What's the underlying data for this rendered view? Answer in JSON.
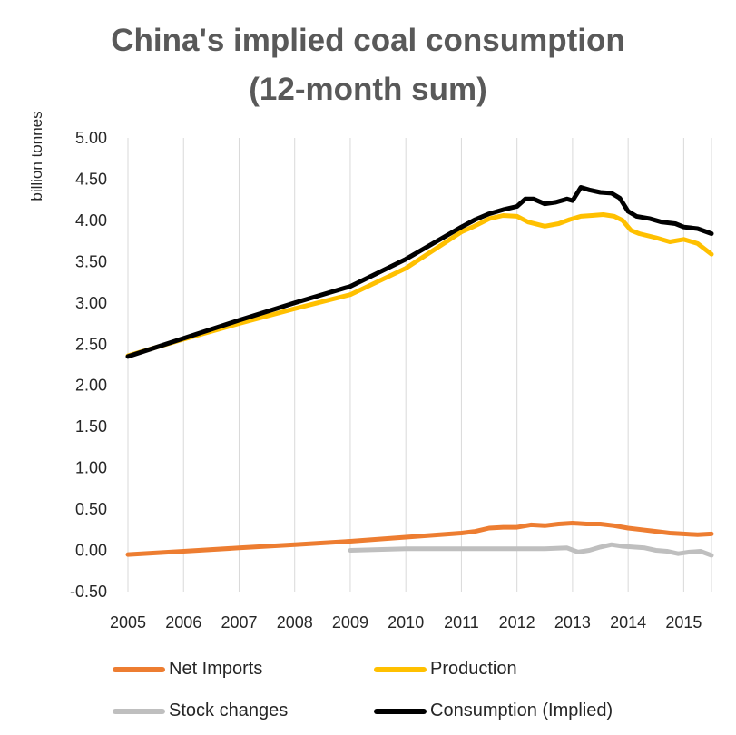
{
  "chart_data": {
    "type": "line",
    "title_line1": "China's implied coal consumption",
    "title_line2": "(12-month sum)",
    "ylabel": "billion tonnes",
    "xlabel": "",
    "ylim": [
      -0.5,
      5.0
    ],
    "xlim": [
      2005,
      2015.5
    ],
    "yticks": [
      "-0.50",
      "0.00",
      "0.50",
      "1.00",
      "1.50",
      "2.00",
      "2.50",
      "3.00",
      "3.50",
      "4.00",
      "4.50",
      "5.00"
    ],
    "xticks": [
      "2005",
      "2006",
      "2007",
      "2008",
      "2009",
      "2010",
      "2011",
      "2012",
      "2013",
      "2014",
      "2015"
    ],
    "grid": "vertical",
    "legend": "bottom",
    "series": [
      {
        "name": "Net Imports",
        "color": "#ed7d31",
        "x": [
          2005,
          2006,
          2007,
          2008,
          2009,
          2010,
          2011,
          2011.25,
          2011.5,
          2011.75,
          2012,
          2012.25,
          2012.5,
          2012.75,
          2013,
          2013.25,
          2013.5,
          2013.75,
          2014,
          2014.25,
          2014.5,
          2014.75,
          2015,
          2015.25,
          2015.5
        ],
        "y": [
          -0.05,
          -0.01,
          0.03,
          0.07,
          0.11,
          0.16,
          0.21,
          0.23,
          0.27,
          0.28,
          0.28,
          0.31,
          0.3,
          0.32,
          0.33,
          0.32,
          0.32,
          0.3,
          0.27,
          0.25,
          0.23,
          0.21,
          0.2,
          0.19,
          0.2
        ]
      },
      {
        "name": "Production",
        "color": "#ffc000",
        "x": [
          2005,
          2006,
          2007,
          2008,
          2009,
          2010,
          2011,
          2011.2,
          2011.5,
          2011.75,
          2012,
          2012.2,
          2012.5,
          2012.75,
          2012.95,
          2013.15,
          2013.35,
          2013.55,
          2013.75,
          2013.9,
          2014.05,
          2014.2,
          2014.5,
          2014.75,
          2015,
          2015.25,
          2015.5
        ],
        "y": [
          2.36,
          2.56,
          2.75,
          2.93,
          3.1,
          3.42,
          3.86,
          3.92,
          4.02,
          4.06,
          4.05,
          3.98,
          3.93,
          3.96,
          4.01,
          4.05,
          4.06,
          4.07,
          4.05,
          4.0,
          3.88,
          3.84,
          3.79,
          3.74,
          3.77,
          3.72,
          3.59
        ]
      },
      {
        "name": "Stock changes",
        "color": "#bfbfbf",
        "x": [
          2009,
          2010,
          2011,
          2012,
          2012.5,
          2012.9,
          2013.1,
          2013.3,
          2013.5,
          2013.7,
          2013.9,
          2014.1,
          2014.3,
          2014.5,
          2014.7,
          2014.9,
          2015.1,
          2015.3,
          2015.5
        ],
        "y": [
          0.0,
          0.02,
          0.02,
          0.02,
          0.02,
          0.03,
          -0.02,
          0.0,
          0.04,
          0.07,
          0.05,
          0.04,
          0.03,
          0.0,
          -0.01,
          -0.04,
          -0.02,
          -0.01,
          -0.06
        ]
      },
      {
        "name": "Consumption (Implied)",
        "color": "#000000",
        "x": [
          2005,
          2006,
          2007,
          2008,
          2009,
          2010,
          2011,
          2011.25,
          2011.5,
          2011.75,
          2012,
          2012.15,
          2012.3,
          2012.5,
          2012.7,
          2012.9,
          2013.0,
          2013.15,
          2013.3,
          2013.5,
          2013.7,
          2013.85,
          2014.0,
          2014.15,
          2014.4,
          2014.6,
          2014.85,
          2015.0,
          2015.25,
          2015.5
        ],
        "y": [
          2.35,
          2.57,
          2.79,
          3.0,
          3.2,
          3.53,
          3.92,
          4.01,
          4.08,
          4.13,
          4.17,
          4.26,
          4.26,
          4.2,
          4.22,
          4.26,
          4.24,
          4.4,
          4.37,
          4.34,
          4.33,
          4.27,
          4.11,
          4.05,
          4.02,
          3.98,
          3.96,
          3.92,
          3.9,
          3.84
        ]
      }
    ]
  }
}
